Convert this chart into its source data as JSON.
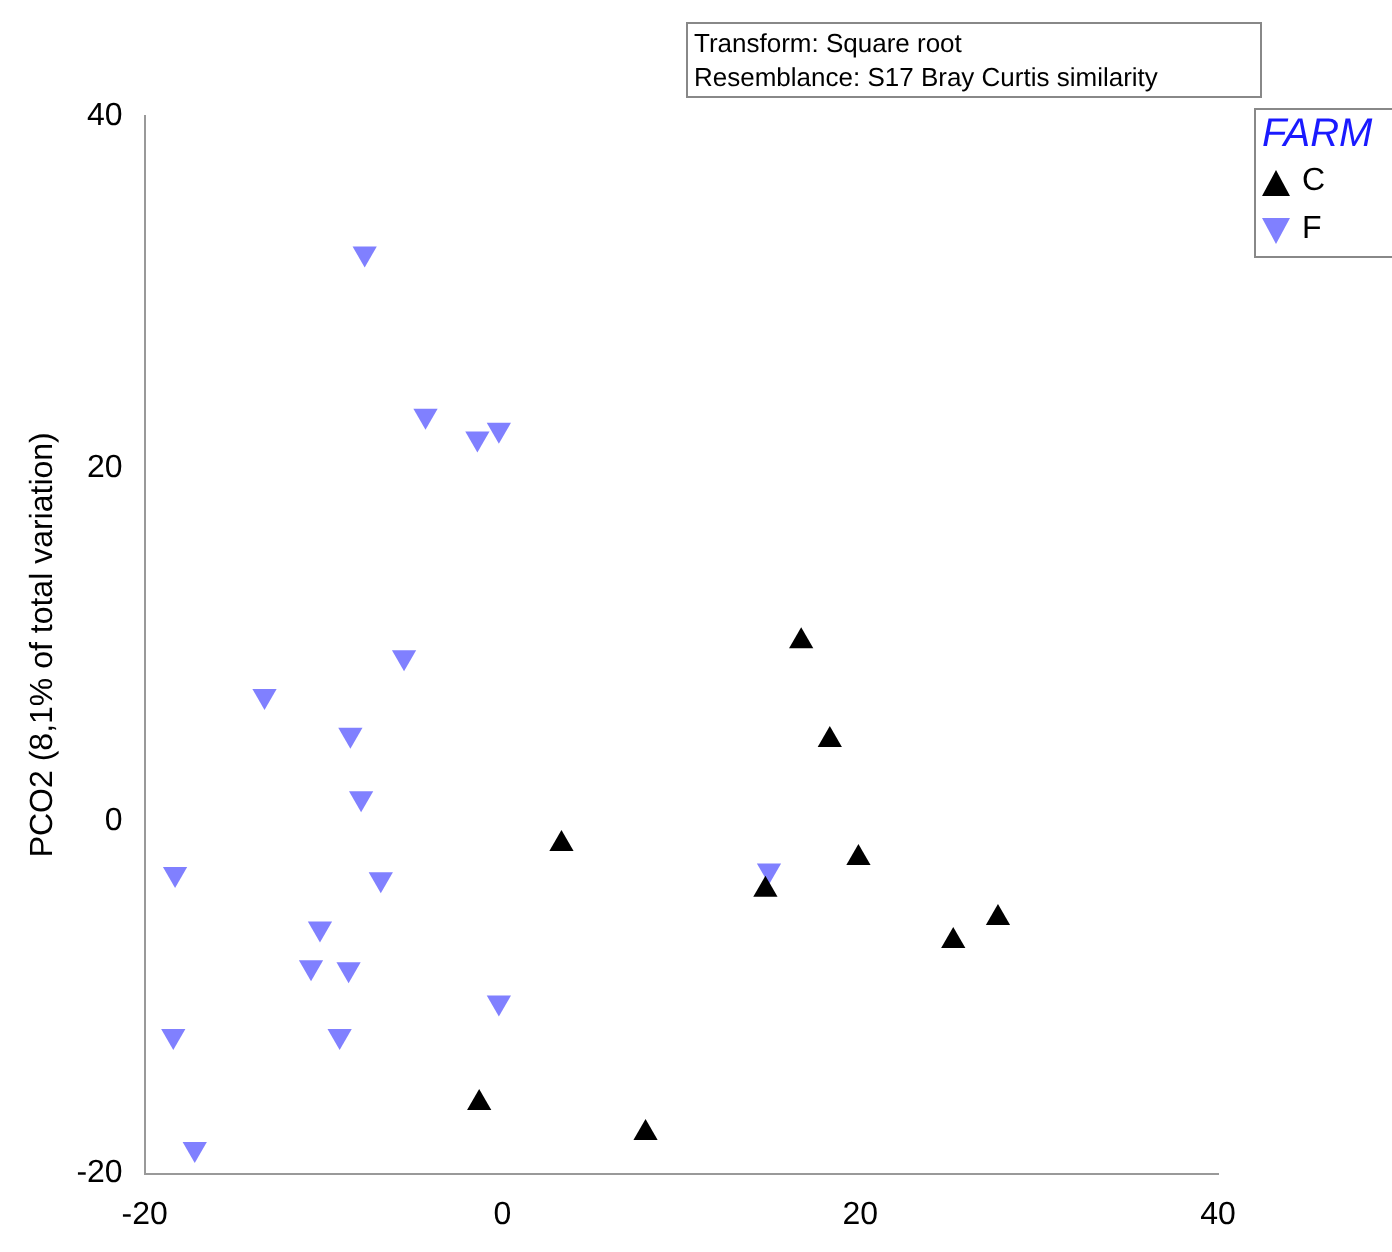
{
  "chart_data": {
    "type": "scatter",
    "ylabel": "PCO2 (8,1% of total variation)",
    "legend_title": "FARM",
    "legend": "top right",
    "grid": false,
    "marker": "triangle",
    "xlim": [
      -20,
      40
    ],
    "xticks": [
      -20,
      0,
      20,
      40
    ],
    "ylim": [
      -20,
      40
    ],
    "yticks": [
      -20,
      0,
      20,
      40
    ],
    "annotations": [
      "Transform: Square root",
      "Resemblance: S17 Bray Curtis similarity"
    ],
    "series": [
      {
        "name": "C",
        "color": "#000000",
        "x": [
          3.3,
          16.7,
          18.3,
          14.7,
          19.9,
          25.2,
          27.7,
          -1.3,
          8.0
        ],
        "values": [
          -1.3,
          10.2,
          4.6,
          -3.9,
          -2.1,
          -6.8,
          -5.5,
          -16.0,
          -17.7
        ]
      },
      {
        "name": "F",
        "color": "#8080ff",
        "x": [
          -7.7,
          -4.3,
          -1.4,
          -0.2,
          -5.5,
          -13.3,
          -8.5,
          -7.9,
          -6.8,
          -18.3,
          14.9,
          -10.2,
          -10.7,
          -8.6,
          -9.1,
          -0.2,
          -18.4,
          -17.2
        ],
        "values": [
          32.2,
          23.0,
          21.7,
          22.2,
          9.3,
          7.1,
          4.9,
          1.3,
          -3.3,
          -3.0,
          -2.8,
          -6.1,
          -8.3,
          -8.4,
          -12.2,
          -10.3,
          -12.2,
          -18.6
        ]
      }
    ]
  }
}
